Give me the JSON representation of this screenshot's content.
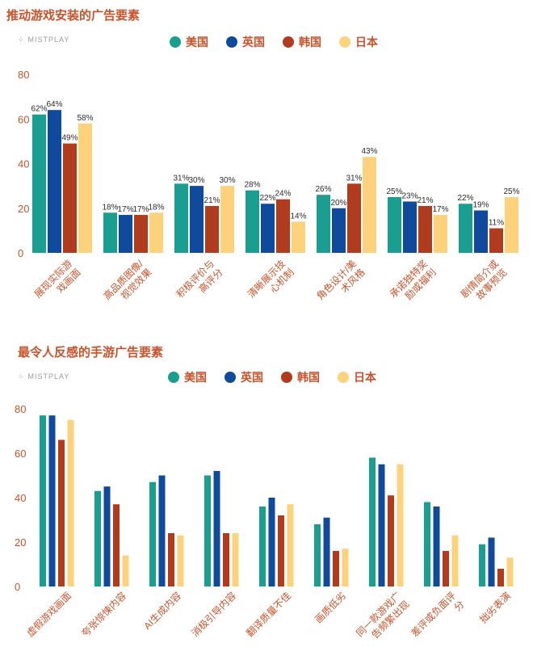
{
  "colors": {
    "us": "#1a9e8f",
    "uk": "#0f4a9c",
    "kr": "#b13b1d",
    "jp": "#fdd27c",
    "text": "#c8532b"
  },
  "logo_text": "MISTPLAY",
  "chart_data": [
    {
      "type": "bar",
      "title": "推动游戏安装的广告要素",
      "legend": [
        "美国",
        "英国",
        "韩国",
        "日本"
      ],
      "categories": [
        "展现实际游戏画面",
        "高品质图像/视觉效果",
        "积极评价与高评分",
        "清晰展示技心机制",
        "角色设计/美术风格",
        "承诺独特奖励或福利",
        "剧情简介或故事预览"
      ],
      "category_lines": [
        [
          "展现实际游",
          "戏画面"
        ],
        [
          "高品质图像/",
          "视觉效果"
        ],
        [
          "积极评价与",
          "高评分"
        ],
        [
          "清晰展示技",
          "心机制"
        ],
        [
          "角色设计/美",
          "术风格"
        ],
        [
          "承诺独特奖",
          "励或福利"
        ],
        [
          "剧情简介或",
          "故事预览"
        ]
      ],
      "yticks": [
        "80",
        "60",
        "40",
        "20",
        "0"
      ],
      "ylim": [
        0,
        80
      ],
      "series": [
        {
          "name": "美国",
          "values": [
            62,
            18,
            31,
            28,
            26,
            25,
            22
          ],
          "labels": [
            "62%",
            "18%",
            "31%",
            "28%",
            "26%",
            "25%",
            "22%"
          ]
        },
        {
          "name": "英国",
          "values": [
            64,
            17,
            30,
            22,
            20,
            23,
            19
          ],
          "labels": [
            "64%",
            "17%",
            "30%",
            "22%",
            "20%",
            "23%",
            "19%"
          ]
        },
        {
          "name": "韩国",
          "values": [
            49,
            17,
            21,
            24,
            31,
            21,
            11
          ],
          "labels": [
            "49%",
            "17%",
            "21%",
            "24%",
            "31%",
            "21%",
            "11%"
          ]
        },
        {
          "name": "日本",
          "values": [
            58,
            18,
            30,
            14,
            43,
            17,
            25
          ],
          "labels": [
            "58%",
            "18%",
            "30%",
            "14%",
            "43%",
            "17%",
            "25%"
          ]
        }
      ]
    },
    {
      "type": "bar",
      "title": "最令人反感的手游广告要素",
      "legend": [
        "美国",
        "英国",
        "韩国",
        "日本"
      ],
      "categories": [
        "虚假游戏画面",
        "夸张惊悚内容",
        "AI生成内容",
        "消极引导内容",
        "翻译质量不佳",
        "画质低劣",
        "同一款游戏广告频繁出现",
        "差评或负面评分",
        "拙劣表演"
      ],
      "category_lines": [
        [
          "虚假游戏画面"
        ],
        [
          "夸张惊悚内容"
        ],
        [
          "AI生成内容"
        ],
        [
          "消极引导内容"
        ],
        [
          "翻译质量不佳"
        ],
        [
          "画质低劣"
        ],
        [
          "同一款游戏广",
          "告频繁出现"
        ],
        [
          "差评或负面评",
          "分"
        ],
        [
          "拙劣表演"
        ]
      ],
      "yticks": [
        "80",
        "60",
        "40",
        "20",
        "0"
      ],
      "ylim": [
        0,
        80
      ],
      "series": [
        {
          "name": "美国",
          "values": [
            77,
            43,
            47,
            50,
            36,
            28,
            58,
            38,
            19
          ]
        },
        {
          "name": "英国",
          "values": [
            77,
            45,
            50,
            52,
            40,
            31,
            55,
            36,
            22
          ]
        },
        {
          "name": "韩国",
          "values": [
            66,
            37,
            24,
            24,
            32,
            16,
            41,
            16,
            8
          ]
        },
        {
          "name": "日本",
          "values": [
            75,
            14,
            23,
            24,
            37,
            17,
            55,
            23,
            13
          ]
        }
      ]
    }
  ]
}
